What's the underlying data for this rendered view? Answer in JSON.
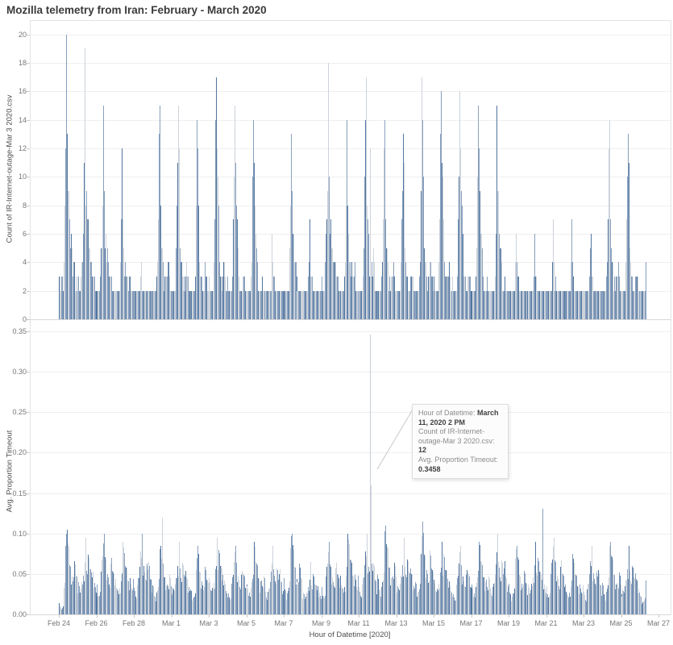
{
  "title": "Mozilla telemetry from Iran: February - March 2020",
  "colors": {
    "background": "#ffffff",
    "bar_palette": [
      "#51759f",
      "#ccd3db",
      "#869ebc",
      "#ccd3db",
      "#8ba2c0"
    ],
    "highlight_bar": "#c9cfd8",
    "gridline": "#efefef",
    "axis_line": "#d8d8d8",
    "tick_text": "#767676",
    "title_text": "#3a3a3a"
  },
  "x_axis": {
    "title": "Hour of Datetime [2020]",
    "tick_labels": [
      "Feb 24",
      "Feb 26",
      "Feb 28",
      "Mar 1",
      "Mar 3",
      "Mar 5",
      "Mar 7",
      "Mar 9",
      "Mar 11",
      "Mar 13",
      "Mar 15",
      "Mar 17",
      "Mar 19",
      "Mar 21",
      "Mar 23",
      "Mar 25",
      "Mar 27"
    ]
  },
  "tooltip": {
    "lines": [
      [
        {
          "t": "Hour of Datetime: ",
          "b": 0
        },
        {
          "t": "March 11, 2020 2 PM",
          "b": 1
        }
      ],
      [
        {
          "t": "Count of IR-Internet-outage-Mar 3 2020.csv: ",
          "b": 0
        },
        {
          "t": "12",
          "b": 1
        }
      ],
      [
        {
          "t": "Avg. Proportion Timeout: ",
          "b": 0
        },
        {
          "t": "0.3458",
          "b": 1
        }
      ]
    ]
  },
  "chart_data": [
    {
      "type": "bar",
      "ylabel": "Count of IR-Internet-outage-Mar 3 2020.csv",
      "ylim": [
        0,
        20
      ],
      "yticks": [
        0,
        2,
        4,
        6,
        8,
        10,
        12,
        14,
        16,
        18,
        20
      ],
      "ytick_format": "int",
      "resolution": "hourly",
      "date_range": [
        "Feb 24 2020 00:00",
        "Mar 26 2020 07:00"
      ],
      "categories": [
        "Feb 24",
        "Feb 25",
        "Feb 26",
        "Feb 27",
        "Feb 28",
        "Feb 29",
        "Mar 1",
        "Mar 2",
        "Mar 3",
        "Mar 4",
        "Mar 5",
        "Mar 6",
        "Mar 7",
        "Mar 8",
        "Mar 9",
        "Mar 10",
        "Mar 11",
        "Mar 12",
        "Mar 13",
        "Mar 14",
        "Mar 15",
        "Mar 16",
        "Mar 17",
        "Mar 18",
        "Mar 19",
        "Mar 20",
        "Mar 21",
        "Mar 22",
        "Mar 23",
        "Mar 24",
        "Mar 25",
        "Mar 26"
      ],
      "daily_peak_values": [
        20,
        19,
        15,
        12,
        4,
        15,
        15,
        14,
        17,
        15,
        14,
        6,
        13,
        7,
        18,
        14,
        17,
        14,
        13,
        17,
        16,
        16,
        15,
        15,
        6,
        6,
        7,
        7,
        6,
        14,
        13,
        7
      ],
      "baseline_value": 2,
      "hour_profile": [
        0.17,
        0.14,
        0.12,
        0.12,
        0.14,
        0.2,
        0.3,
        0.55,
        0.8,
        1.0,
        0.78,
        0.58,
        0.45,
        0.35,
        0.3,
        0.26,
        0.22,
        0.2,
        0.22,
        0.26,
        0.24,
        0.2,
        0.16,
        0.13
      ],
      "jitter": [
        1.0,
        0.72,
        0.9,
        0.55,
        1.05,
        0.8,
        0.62,
        0.95,
        0.75,
        1.08,
        0.85,
        0.6,
        1.0,
        0.7,
        0.92,
        0.58,
        1.04,
        0.78,
        0.65,
        0.98,
        0.74,
        1.06,
        0.82,
        0.66
      ],
      "overrides": [
        {
          "day": "Mar 11",
          "day_index": 16,
          "hour": 14,
          "value": 12
        }
      ],
      "highlight_point": {
        "datetime": "March 11, 2020 2 PM",
        "value": 12
      }
    },
    {
      "type": "bar",
      "ylabel": "Avg. Proportion Timeout",
      "ylim": [
        0,
        0.35
      ],
      "yticks": [
        0,
        0.05,
        0.1,
        0.15,
        0.2,
        0.25,
        0.3,
        0.35
      ],
      "ytick_format": "2dp",
      "resolution": "hourly",
      "date_range": [
        "Feb 24 2020 00:00",
        "Mar 26 2020 07:00"
      ],
      "categories": [
        "Feb 24",
        "Feb 25",
        "Feb 26",
        "Feb 27",
        "Feb 28",
        "Feb 29",
        "Mar 1",
        "Mar 2",
        "Mar 3",
        "Mar 4",
        "Mar 5",
        "Mar 6",
        "Mar 7",
        "Mar 8",
        "Mar 9",
        "Mar 10",
        "Mar 11",
        "Mar 12",
        "Mar 13",
        "Mar 14",
        "Mar 15",
        "Mar 16",
        "Mar 17",
        "Mar 18",
        "Mar 19",
        "Mar 20",
        "Mar 21",
        "Mar 22",
        "Mar 23",
        "Mar 24",
        "Mar 25",
        "Mar 26"
      ],
      "daily_peak_values": [
        0.105,
        0.095,
        0.1,
        0.09,
        0.1,
        0.085,
        0.09,
        0.085,
        0.095,
        0.085,
        0.09,
        0.085,
        0.1,
        0.065,
        0.09,
        0.1,
        0.1,
        0.11,
        0.095,
        0.115,
        0.09,
        0.085,
        0.09,
        0.1,
        0.085,
        0.09,
        0.095,
        0.075,
        0.085,
        0.09,
        0.085,
        0.065
      ],
      "hour_profile": [
        0.45,
        0.4,
        0.35,
        0.32,
        0.35,
        0.42,
        0.5,
        0.62,
        0.78,
        0.9,
        1.0,
        0.88,
        0.8,
        0.74,
        0.68,
        0.64,
        0.6,
        0.55,
        0.6,
        0.66,
        0.6,
        0.55,
        0.5,
        0.46
      ],
      "jitter": [
        1.0,
        0.72,
        0.9,
        0.55,
        1.05,
        0.8,
        0.62,
        0.95,
        0.75,
        1.08,
        0.85,
        0.6,
        1.0,
        0.7,
        0.92,
        0.58,
        1.04,
        0.78,
        0.65,
        0.98,
        0.74,
        1.06,
        0.82,
        0.66
      ],
      "overrides": [
        {
          "day": "Feb 29",
          "day_index": 5,
          "hour": 12,
          "value": 0.12
        },
        {
          "day": "Mar 11",
          "day_index": 16,
          "hour": 14,
          "value": 0.3458,
          "highlight": true
        },
        {
          "day": "Mar 11",
          "day_index": 16,
          "hour": 15,
          "value": 0.16
        },
        {
          "day": "Mar 20",
          "day_index": 25,
          "hour": 19,
          "value": 0.131
        }
      ],
      "highlight_point": {
        "datetime": "March 11, 2020 2 PM",
        "value": 0.3458
      }
    }
  ]
}
